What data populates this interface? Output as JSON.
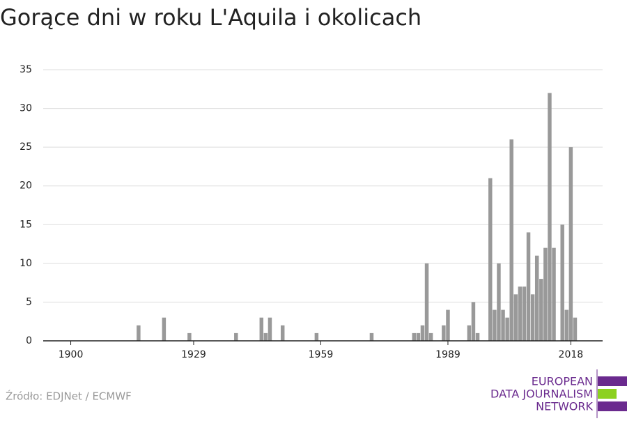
{
  "chart_data": {
    "type": "bar",
    "title": "Gorące dni w roku L'Aquila i okolicach",
    "x": [
      1916,
      1922,
      1928,
      1939,
      1945,
      1946,
      1947,
      1950,
      1958,
      1971,
      1981,
      1982,
      1983,
      1984,
      1985,
      1988,
      1989,
      1994,
      1995,
      1996,
      1999,
      2000,
      2001,
      2002,
      2003,
      2004,
      2005,
      2006,
      2007,
      2008,
      2009,
      2010,
      2011,
      2012,
      2013,
      2014,
      2016,
      2017,
      2018,
      2019
    ],
    "values": [
      2,
      3,
      1,
      1,
      3,
      1,
      3,
      2,
      1,
      1,
      1,
      1,
      2,
      10,
      1,
      2,
      4,
      2,
      5,
      1,
      21,
      4,
      10,
      4,
      3,
      26,
      6,
      7,
      7,
      14,
      6,
      11,
      8,
      12,
      32,
      12,
      15,
      4,
      25,
      3
    ],
    "color": "#999999",
    "xlim": [
      1893.5,
      2025.5
    ],
    "xticks": [
      1900,
      1929,
      1959,
      1989,
      2018
    ],
    "ylim": [
      0,
      35
    ],
    "yticks": [
      0,
      5,
      10,
      15,
      20,
      25,
      30,
      35
    ],
    "grid": true,
    "source": "Źródło: EDJNet / ECMWF",
    "logo": [
      "EUROPEAN",
      "DATA JOURNALISM",
      "NETWORK"
    ]
  }
}
